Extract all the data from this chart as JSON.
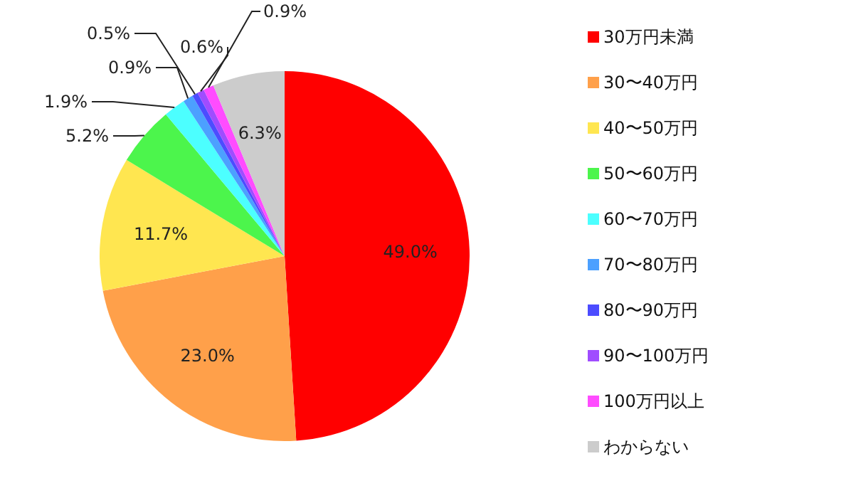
{
  "chart_data": {
    "type": "pie",
    "categories": [
      "30万円未満",
      "30〜40万円",
      "40〜50万円",
      "50〜60万円",
      "60〜70万円",
      "70〜80万円",
      "80〜90万円",
      "90〜100万円",
      "100万円以上",
      "わからない"
    ],
    "values": [
      49.0,
      23.0,
      11.7,
      5.2,
      1.9,
      0.9,
      0.5,
      0.6,
      0.9,
      6.3
    ],
    "colors": [
      "#ff0000",
      "#ffa04a",
      "#ffe650",
      "#4cf54c",
      "#4cffff",
      "#4ca0ff",
      "#4c4cff",
      "#a04cff",
      "#ff4cff",
      "#cccccc"
    ],
    "value_labels": [
      "49.0%",
      "23.0%",
      "11.7%",
      "5.2%",
      "1.9%",
      "0.9%",
      "0.5%",
      "0.6%",
      "0.9%",
      "6.3%"
    ],
    "legend": "right"
  }
}
